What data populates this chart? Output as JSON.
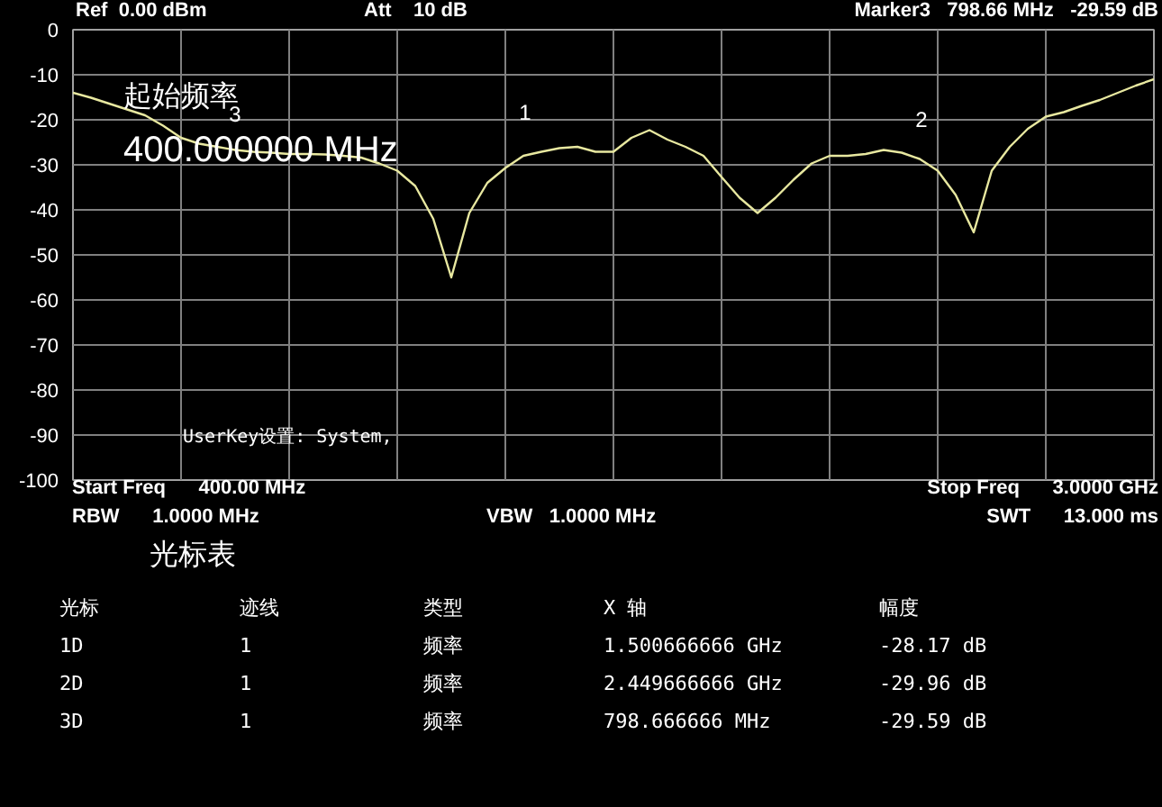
{
  "chart_data": {
    "type": "line",
    "categories": [
      null,
      null,
      null,
      null,
      null,
      null,
      null,
      null,
      null,
      null,
      null,
      null,
      null,
      null,
      null,
      null,
      null,
      null,
      null,
      null,
      null,
      null,
      null,
      null,
      null,
      null,
      null,
      null,
      null,
      null,
      null,
      null,
      null,
      null,
      null,
      null,
      null,
      null,
      null,
      null,
      null,
      null,
      null,
      null,
      null,
      null,
      null,
      null,
      null,
      null,
      null,
      null,
      null,
      null,
      null,
      null,
      null,
      null,
      null,
      null,
      null
    ],
    "series": [
      {
        "color": "#e8e8a0",
        "values": [
          -14,
          -15.1,
          -16.4,
          -17.7,
          -19,
          -21.3,
          -24,
          -25.3,
          -26,
          -26.7,
          -27.1,
          -27.3,
          -27.6,
          -27.6,
          -27.7,
          -28,
          -28.4,
          -29.7,
          -31.3,
          -34.7,
          -42,
          -55,
          -40.7,
          -34,
          -30.7,
          -28,
          -27.1,
          -26.3,
          -26,
          -27.1,
          -27.1,
          -24,
          -22.3,
          -24.4,
          -26,
          -28,
          -32.7,
          -37.3,
          -40.7,
          -37.3,
          -33.3,
          -29.7,
          -28,
          -28,
          -27.6,
          -26.7,
          -27.3,
          -28.7,
          -31.3,
          -36.7,
          -45,
          -31.3,
          -26,
          -22,
          -19.3,
          -18.3,
          -16.9,
          -15.6,
          -14,
          -12.4,
          -11
        ]
      }
    ],
    "ylim": [
      -100,
      0
    ],
    "yticks": [
      0,
      -10,
      -20,
      -30,
      -40,
      -50,
      -60,
      -70,
      -80,
      -90,
      -100
    ],
    "tick_labels": "y",
    "grid": true,
    "annotations": [
      "1",
      "2",
      "3",
      "Ref  0.00 dBm",
      "Att    10 dB",
      "Marker3   798.66 MHz   -29.59 dB",
      "起始频率",
      "400.000000 MHz",
      "UserKey设置:   System,",
      "Start Freq      400.00 MHz",
      "Stop Freq      3.0000 GHz",
      "RBW      1.0000 MHz",
      "VBW   1.0000 MHz",
      "SWT      13.000 ms",
      "光标表",
      "光标",
      "迹线",
      "类型",
      "X 轴",
      "幅度",
      "1D",
      "1",
      "频率",
      "1.500666666 GHz",
      "-28.17 dB",
      "2D",
      "1",
      "频率",
      "2.449666666 GHz",
      "-29.96 dB",
      "3D",
      "1",
      "频率",
      "798.666666 MHz",
      "-29.59 dB"
    ]
  }
}
